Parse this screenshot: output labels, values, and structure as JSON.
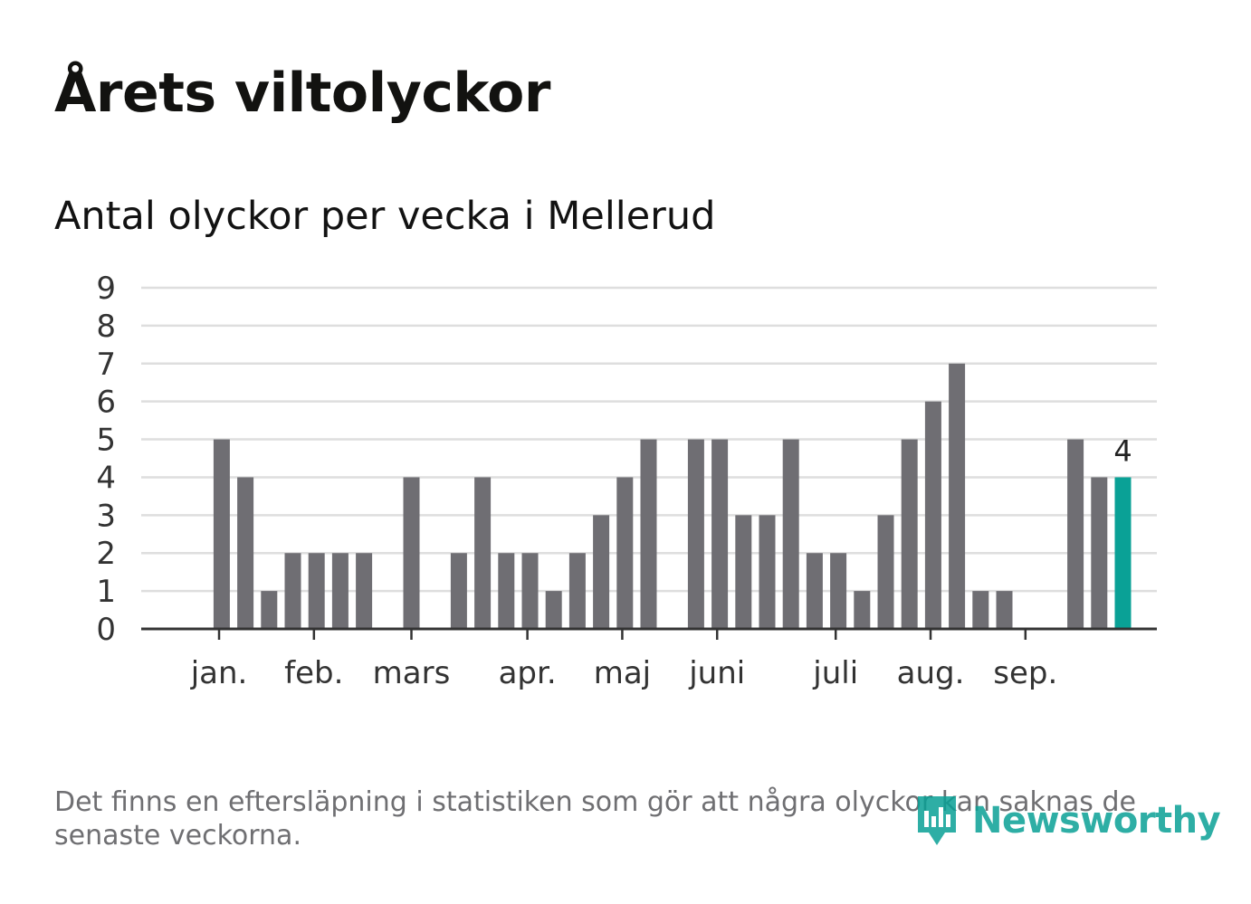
{
  "title": "Årets viltolyckor",
  "subtitle": "Antal olyckor per vecka i Mellerud",
  "footnote": "Det finns en eftersläpning i statistiken som gör att några olyckor kan saknas de senaste veckorna.",
  "brand": {
    "name": "Newsworthy",
    "color": "#0aa196"
  },
  "colors": {
    "bar": "#6f6e73",
    "highlight": "#0aa196",
    "grid": "#dedede",
    "axis": "#333333"
  },
  "chart_data": {
    "type": "bar",
    "title": "Antal olyckor per vecka i Mellerud",
    "xlabel": "",
    "ylabel": "",
    "ylim": [
      0,
      9
    ],
    "yticks": [
      "0",
      "1",
      "2",
      "3",
      "4",
      "5",
      "6",
      "7",
      "8",
      "9"
    ],
    "grid": true,
    "weeks": [
      1,
      2,
      3,
      4,
      5,
      6,
      7,
      8,
      9,
      10,
      11,
      12,
      13,
      14,
      15,
      16,
      17,
      18,
      19,
      20,
      21,
      22,
      23,
      24,
      25,
      26,
      27,
      28,
      29,
      30,
      31,
      32,
      33,
      34,
      35,
      36,
      37,
      38,
      39,
      40,
      41,
      42
    ],
    "values": [
      0,
      0,
      5,
      4,
      1,
      2,
      2,
      2,
      2,
      0,
      4,
      0,
      2,
      4,
      2,
      2,
      1,
      2,
      3,
      4,
      5,
      0,
      5,
      5,
      3,
      3,
      5,
      2,
      2,
      1,
      3,
      5,
      6,
      7,
      1,
      1,
      0,
      0,
      5,
      4,
      4,
      0
    ],
    "highlight_index": 40,
    "highlight_label": "4",
    "month_labels": [
      "jan.",
      "feb.",
      "mars",
      "apr.",
      "maj",
      "juni",
      "juli",
      "aug.",
      "sep."
    ],
    "month_positions": [
      1.89,
      5.89,
      10.0,
      14.89,
      18.89,
      22.89,
      27.89,
      31.89,
      35.89
    ]
  }
}
